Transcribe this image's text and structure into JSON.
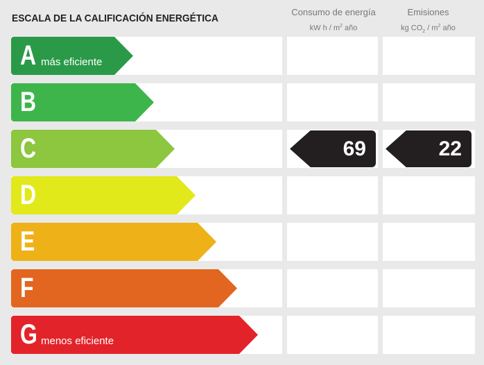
{
  "title": "ESCALA DE LA CALIFICACIÓN ENERGÉTICA",
  "columns": [
    {
      "label": "Consumo de energía",
      "unit_pre": "kW h / m",
      "unit_sup": "2",
      "unit_post": " año"
    },
    {
      "label": "Emisiones",
      "unit_pre": "kg CO",
      "unit_sub": "2",
      "unit_mid": " / m",
      "unit_sup": "2",
      "unit_post": " año"
    }
  ],
  "ratings": [
    {
      "letter": "A",
      "note": "más eficiente",
      "color": "#2a9a48"
    },
    {
      "letter": "B",
      "note": "",
      "color": "#3db54a"
    },
    {
      "letter": "C",
      "note": "",
      "color": "#8dc63f"
    },
    {
      "letter": "D",
      "note": "",
      "color": "#e1e91b"
    },
    {
      "letter": "E",
      "note": "",
      "color": "#eeb218"
    },
    {
      "letter": "F",
      "note": "",
      "color": "#e2661f"
    },
    {
      "letter": "G",
      "note": "menos eficiente",
      "color": "#e3232a"
    }
  ],
  "result": {
    "rating": "C",
    "consumption": "69",
    "emissions": "22",
    "marker_color": "#231f20"
  }
}
